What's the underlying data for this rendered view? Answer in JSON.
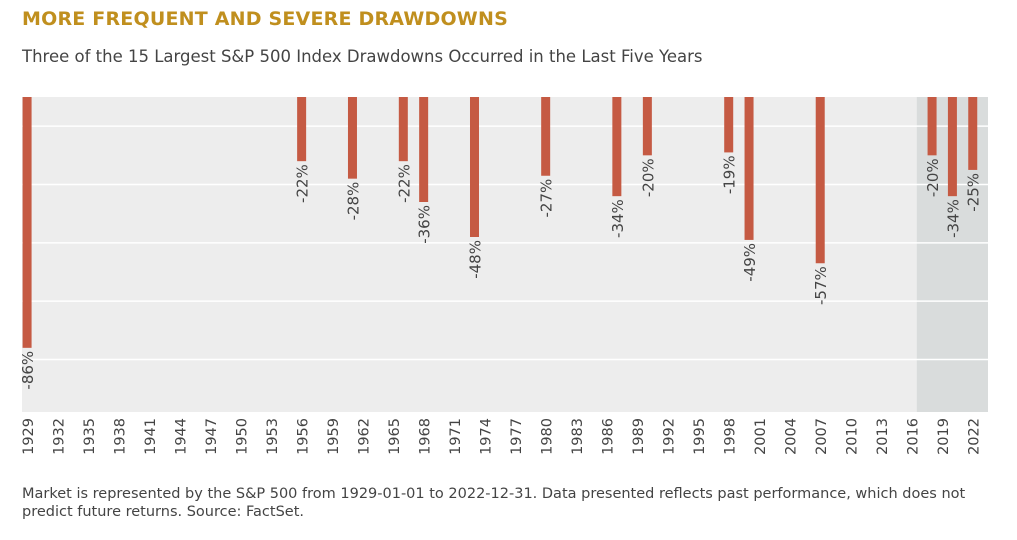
{
  "header": {
    "title": "MORE FREQUENT AND SEVERE DRAWDOWNS",
    "subtitle": "Three of the 15 Largest S&P 500 Index Drawdowns Occurred in the Last Five Years"
  },
  "footer": {
    "note": "Market is represented by the S&P 500 from 1929-01-01 to 2022-12-31. Data presented reflects past performance, which does not predict future returns. Source: FactSet."
  },
  "colors": {
    "title": "#c08f1e",
    "bar": "#c55a43",
    "plot_background": "#ededed",
    "highlight_background": "#d9dcdc",
    "gridline": "#ffffff",
    "text": "#444444"
  },
  "chart_data": {
    "type": "bar",
    "x": [
      1929,
      1956,
      1961,
      1966,
      1968,
      1973,
      1980,
      1987,
      1990,
      1998,
      2000,
      2007,
      2018,
      2020,
      2022
    ],
    "values": [
      -86,
      -22,
      -28,
      -22,
      -36,
      -48,
      -27,
      -34,
      -20,
      -19,
      -49,
      -57,
      -20,
      -34,
      -25
    ],
    "data_labels": [
      "-86%",
      "-22%",
      "-28%",
      "-22%",
      "-36%",
      "-48%",
      "-27%",
      "-34%",
      "-20%",
      "-19%",
      "-49%",
      "-57%",
      "-20%",
      "-34%",
      "-25%"
    ],
    "xticks": [
      1929,
      1932,
      1935,
      1938,
      1941,
      1944,
      1947,
      1950,
      1953,
      1956,
      1959,
      1962,
      1965,
      1968,
      1971,
      1974,
      1977,
      1980,
      1983,
      1986,
      1989,
      1992,
      1995,
      1998,
      2001,
      2004,
      2007,
      2010,
      2013,
      2016,
      2019,
      2022
    ],
    "xlim": [
      1928.5,
      2023.5
    ],
    "ylim": [
      -108,
      0
    ],
    "gridlines_y": [
      -10,
      -30,
      -50,
      -70,
      -90
    ],
    "highlight_range": [
      2016.5,
      2023.5
    ],
    "grid": true,
    "legend": "none",
    "xlabel": "",
    "ylabel": ""
  }
}
